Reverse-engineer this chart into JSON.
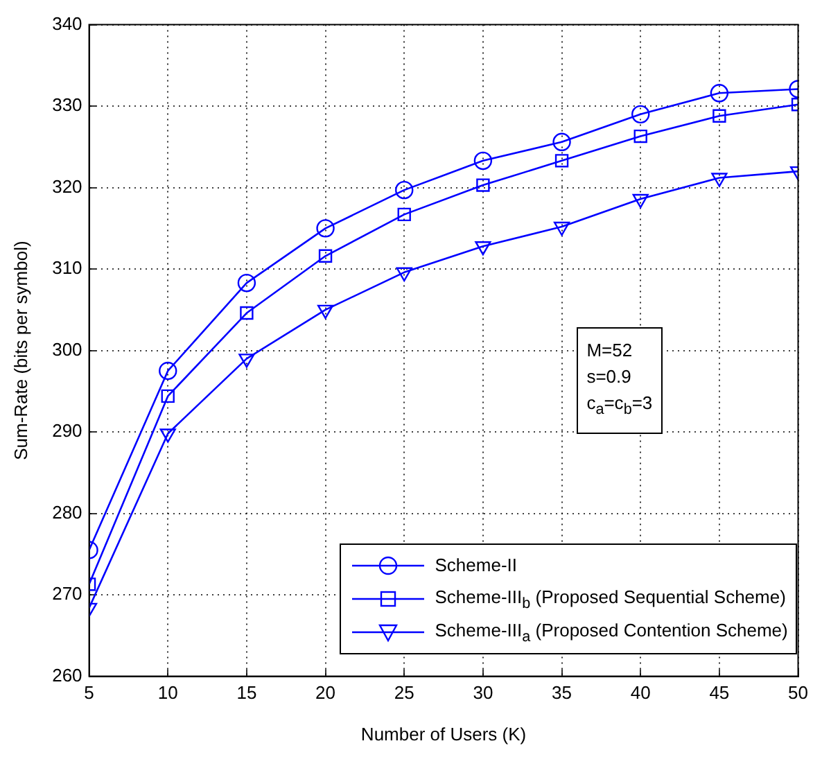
{
  "chart_data": {
    "type": "line",
    "xlabel": "Number of Users (K)",
    "ylabel": "Sum-Rate (bits per symbol)",
    "x": [
      5,
      10,
      15,
      20,
      25,
      30,
      35,
      40,
      45,
      50
    ],
    "series": [
      {
        "name": "Scheme-II",
        "color": "#0000ff",
        "marker": "circle",
        "values": [
          275.5,
          297.5,
          308.3,
          315,
          319.7,
          323.3,
          325.6,
          329,
          331.6,
          332.1
        ]
      },
      {
        "name": "Scheme-III$_{b}$ (Proposed Sequential Scheme)",
        "color": "#0000ff",
        "marker": "square",
        "values": [
          271.3,
          294.4,
          304.6,
          311.6,
          316.7,
          320.3,
          323.3,
          326.3,
          328.8,
          330.2
        ]
      },
      {
        "name": "Scheme-III$_{a}$ (Proposed Contention Scheme)",
        "color": "#0000ff",
        "marker": "triangle",
        "values": [
          268.4,
          289.8,
          299,
          305,
          309.6,
          312.8,
          315.2,
          318.6,
          321.2,
          322
        ]
      }
    ],
    "xlim": [
      5,
      50
    ],
    "xticks": [
      5,
      10,
      15,
      20,
      25,
      30,
      35,
      40,
      45,
      50
    ],
    "ylim": [
      260,
      340
    ],
    "yticks": [
      260,
      270,
      280,
      290,
      300,
      310,
      320,
      330,
      340
    ],
    "grid": true,
    "legend": "bottom right",
    "line_style": "solid",
    "annotations": [
      "M=52\ns=0.9\nc$_{a}$=c$_{b}$=3"
    ]
  }
}
